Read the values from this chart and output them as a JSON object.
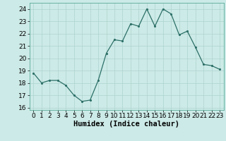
{
  "x": [
    0,
    1,
    2,
    3,
    4,
    5,
    6,
    7,
    8,
    9,
    10,
    11,
    12,
    13,
    14,
    15,
    16,
    17,
    18,
    19,
    20,
    21,
    22,
    23
  ],
  "y": [
    18.8,
    18.0,
    18.2,
    18.2,
    17.8,
    17.0,
    16.5,
    16.6,
    18.2,
    20.4,
    21.5,
    21.4,
    22.8,
    22.6,
    24.0,
    22.6,
    24.0,
    23.6,
    21.9,
    22.2,
    20.9,
    19.5,
    19.4,
    19.1
  ],
  "xlabel": "Humidex (Indice chaleur)",
  "xlim": [
    -0.5,
    23.5
  ],
  "ylim": [
    15.8,
    24.5
  ],
  "yticks": [
    16,
    17,
    18,
    19,
    20,
    21,
    22,
    23,
    24
  ],
  "xticks": [
    0,
    1,
    2,
    3,
    4,
    5,
    6,
    7,
    8,
    9,
    10,
    11,
    12,
    13,
    14,
    15,
    16,
    17,
    18,
    19,
    20,
    21,
    22,
    23
  ],
  "bg_color": "#cceae7",
  "grid_color": "#aed4d0",
  "line_color": "#2d7068",
  "marker_color": "#2d7068",
  "tick_fontsize": 6.5,
  "label_fontsize": 7.5
}
